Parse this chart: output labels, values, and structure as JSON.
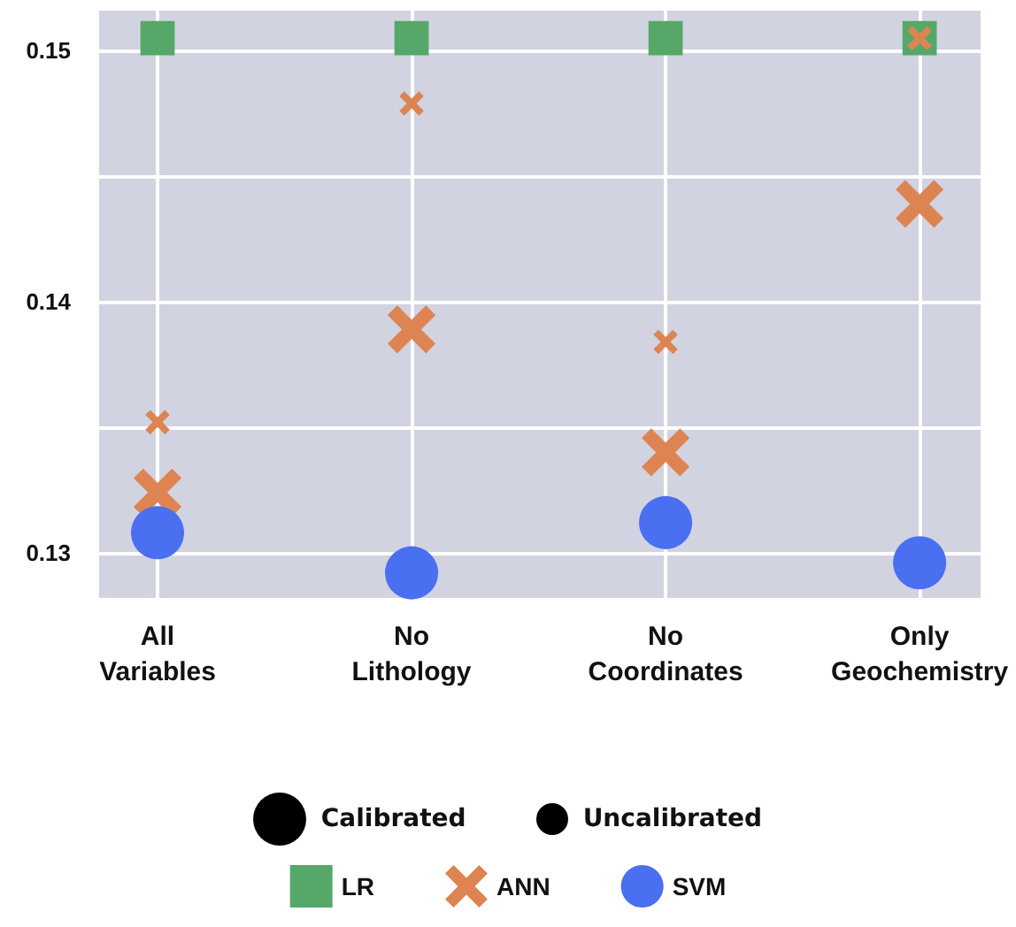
{
  "chart_data": {
    "type": "scatter",
    "categories": [
      "All Variables",
      "No Lithology",
      "No Coordinates",
      "Only Geochemistry"
    ],
    "series": [
      {
        "name": "LR",
        "color": "#55a868",
        "marker": "square",
        "sizes": [
          0.53,
          0.53,
          0.53,
          0.53
        ],
        "values": [
          0.1505,
          0.1505,
          0.1505,
          0.1505
        ]
      },
      {
        "name": "ANN",
        "color": "#dd8452",
        "marker": "cross",
        "sizes": [
          0.58,
          0.58,
          0.58,
          0.58
        ],
        "values": [
          0.1324,
          0.1389,
          0.134,
          0.1439
        ]
      },
      {
        "color": "#dd8452",
        "marker": "cross",
        "sizes": [
          0.15,
          0.15,
          0.15,
          0.15
        ],
        "values": [
          0.1352,
          0.1479,
          0.1384,
          0.1505
        ]
      },
      {
        "name": "SVM",
        "color": "#4a6ff0",
        "marker": "circle",
        "sizes": [
          1,
          1,
          1,
          1
        ],
        "values": [
          0.1308,
          0.1292,
          0.1312,
          0.1296
        ]
      }
    ],
    "ylim": [
      0.1282,
      0.1516
    ],
    "yticks": [
      0.13,
      {
        "value": 0.135,
        "label": null
      },
      0.14,
      {
        "value": 0.145,
        "label": null
      },
      0.15
    ],
    "annotations": [
      "Calibrated",
      "Uncalibrated"
    ],
    "grid": true,
    "legend": "bottom"
  }
}
